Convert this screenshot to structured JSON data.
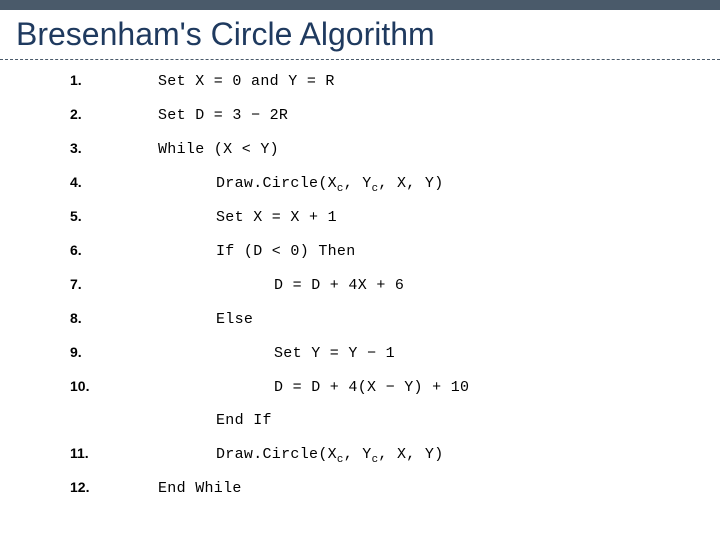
{
  "title": "Bresenham's Circle Algorithm",
  "colors": {
    "topbar": "#4a5a6a",
    "title": "#1f3a5f",
    "divider": "#4a5a6a",
    "text": "#000000",
    "background": "#ffffff"
  },
  "typography": {
    "title_fontsize": 32,
    "title_family": "Trebuchet MS",
    "body_fontsize": 15,
    "body_family": "Courier New",
    "num_fontsize": 14,
    "num_bold": true
  },
  "steps": [
    {
      "n": "1.",
      "indent": 1,
      "text": "Set X = 0 and Y = R"
    },
    {
      "n": "2.",
      "indent": 1,
      "text": "Set D = 3 − 2R"
    },
    {
      "n": "3.",
      "indent": 1,
      "text": "While (X < Y)"
    },
    {
      "n": "4.",
      "indent": 2,
      "html": "Draw.Circle(X<sub>c</sub>, Y<sub>c</sub>, X, Y)"
    },
    {
      "n": "5.",
      "indent": 2,
      "text": "Set X = X + 1"
    },
    {
      "n": "6.",
      "indent": 2,
      "text": "If (D < 0) Then"
    },
    {
      "n": "7.",
      "indent": 3,
      "text": "D = D + 4X + 6"
    },
    {
      "n": "8.",
      "indent": 2,
      "text": "Else"
    },
    {
      "n": "9.",
      "indent": 3,
      "text": "Set Y = Y − 1"
    },
    {
      "n": "10.",
      "indent": 3,
      "text": "D = D + 4(X − Y) + 10"
    },
    {
      "n": "",
      "indent": 2,
      "text": "End If"
    },
    {
      "n": "11.",
      "indent": 2,
      "html": "Draw.Circle(X<sub>c</sub>, Y<sub>c</sub>, X, Y)"
    },
    {
      "n": "12.",
      "indent": 1,
      "text": "End While"
    }
  ]
}
